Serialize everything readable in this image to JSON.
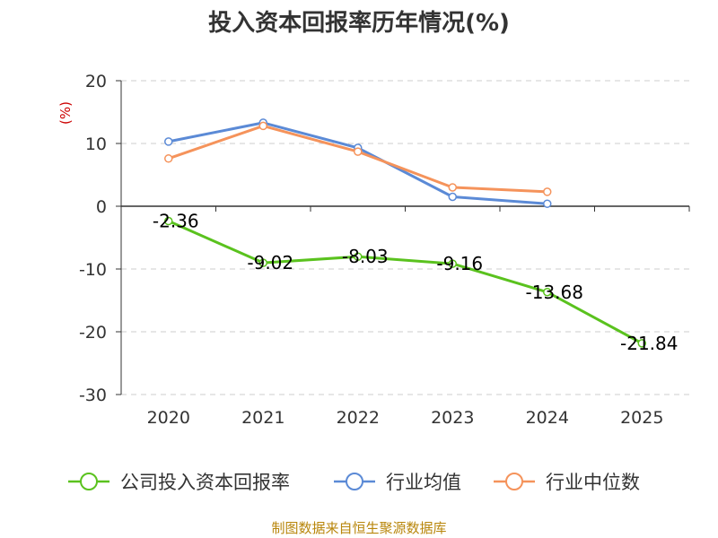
{
  "chart_data": {
    "type": "line",
    "title": "投入资本回报率历年情况(%)",
    "ylabel": "(%)",
    "xlabel": "",
    "categories": [
      "2020",
      "2021",
      "2022",
      "2023",
      "2024",
      "2025"
    ],
    "ylim": [
      -30,
      20
    ],
    "yticks": [
      20,
      10,
      0,
      -10,
      -20,
      -30
    ],
    "grid": true,
    "legend_position": "bottom",
    "series": [
      {
        "name": "公司投入资本回报率",
        "color": "#5ac21e",
        "values": [
          -2.36,
          -9.02,
          -8.03,
          -9.16,
          -13.68,
          -21.84
        ],
        "labels": [
          "-2.36",
          "-9.02",
          "-8.03",
          "-9.16",
          "-13.68",
          "-21.84"
        ]
      },
      {
        "name": "行业均值",
        "color": "#5b8ad6",
        "values": [
          10.3,
          13.3,
          9.3,
          1.5,
          0.4,
          null
        ]
      },
      {
        "name": "行业中位数",
        "color": "#f5935b",
        "values": [
          7.6,
          12.8,
          8.7,
          3.0,
          2.3,
          null
        ]
      }
    ]
  },
  "source": "制图数据来自恒生聚源数据库"
}
